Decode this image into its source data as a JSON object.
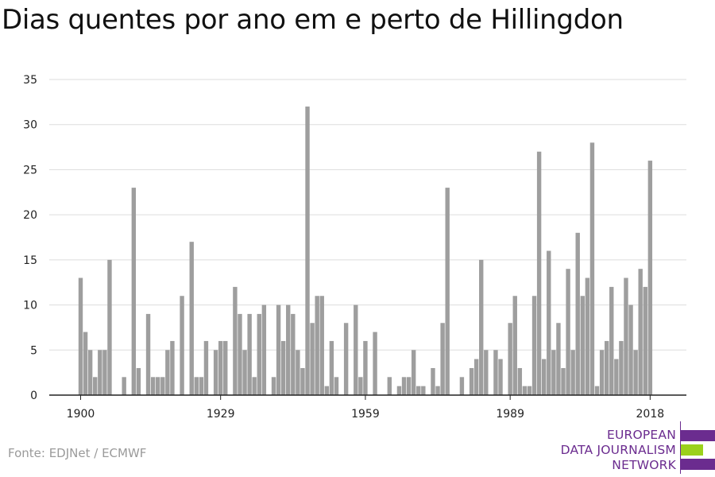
{
  "title": "Dias quentes por ano em e perto de Hillingdon",
  "source": "Fonte: EDJNet / ECMWF",
  "logo": {
    "line1": "EUROPEAN",
    "line2": "DATA JOURNALISM",
    "line3": "NETWORK"
  },
  "colors": {
    "bar": "#9e9e9e",
    "grid": "#dddddd",
    "axis": "#222222",
    "brand_purple": "#6b2c8f",
    "brand_green": "#9bd11c"
  },
  "chart_data": {
    "type": "bar",
    "title": "Dias quentes por ano em e perto de Hillingdon",
    "xlabel": "",
    "ylabel": "",
    "ylim": [
      0,
      35
    ],
    "yticks": [
      0,
      5,
      10,
      15,
      20,
      25,
      30,
      35
    ],
    "xticks": [
      1900,
      1929,
      1959,
      1989,
      2018
    ],
    "grid": true,
    "x_start": 1900,
    "x": [
      1900,
      1901,
      1902,
      1903,
      1904,
      1905,
      1906,
      1907,
      1908,
      1909,
      1910,
      1911,
      1912,
      1913,
      1914,
      1915,
      1916,
      1917,
      1918,
      1919,
      1920,
      1921,
      1922,
      1923,
      1924,
      1925,
      1926,
      1927,
      1928,
      1929,
      1930,
      1931,
      1932,
      1933,
      1934,
      1935,
      1936,
      1937,
      1938,
      1939,
      1940,
      1941,
      1942,
      1943,
      1944,
      1945,
      1946,
      1947,
      1948,
      1949,
      1950,
      1951,
      1952,
      1953,
      1954,
      1955,
      1956,
      1957,
      1958,
      1959,
      1960,
      1961,
      1962,
      1963,
      1964,
      1965,
      1966,
      1967,
      1968,
      1969,
      1970,
      1971,
      1972,
      1973,
      1974,
      1975,
      1976,
      1977,
      1978,
      1979,
      1980,
      1981,
      1982,
      1983,
      1984,
      1985,
      1986,
      1987,
      1988,
      1989,
      1990,
      1991,
      1992,
      1993,
      1994,
      1995,
      1996,
      1997,
      1998,
      1999,
      2000,
      2001,
      2002,
      2003,
      2004,
      2005,
      2006,
      2007,
      2008,
      2009,
      2010,
      2011,
      2012,
      2013,
      2014,
      2015,
      2016,
      2017,
      2018
    ],
    "values": [
      13,
      7,
      5,
      2,
      5,
      5,
      15,
      0,
      0,
      2,
      0,
      23,
      3,
      0,
      9,
      2,
      2,
      2,
      5,
      6,
      0,
      11,
      0,
      17,
      2,
      2,
      6,
      0,
      5,
      6,
      6,
      0,
      12,
      9,
      5,
      9,
      2,
      9,
      10,
      0,
      2,
      10,
      6,
      10,
      9,
      5,
      3,
      32,
      8,
      11,
      11,
      1,
      6,
      2,
      0,
      8,
      0,
      10,
      2,
      6,
      0,
      7,
      0,
      0,
      2,
      0,
      1,
      2,
      2,
      5,
      1,
      1,
      0,
      3,
      1,
      8,
      23,
      0,
      0,
      2,
      0,
      3,
      4,
      15,
      5,
      0,
      5,
      4,
      0,
      8,
      11,
      3,
      1,
      1,
      11,
      27,
      4,
      16,
      5,
      8,
      3,
      14,
      5,
      18,
      11,
      13,
      28,
      1,
      5,
      6,
      12,
      4,
      6,
      13,
      10,
      5,
      14,
      12,
      26
    ]
  }
}
